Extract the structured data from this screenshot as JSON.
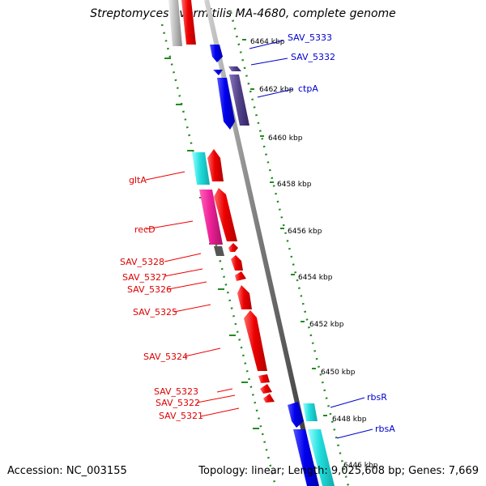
{
  "title": "Streptomyces avermitilis MA-4680, complete genome",
  "accession": "Accession: NC_003155",
  "meta": "Topology: linear; Length: 9,025,608 bp; Genes: 7,669",
  "colors": {
    "forward": "#ee0000",
    "reverse": "#0000ee",
    "cyan": "#22dddd",
    "magenta": "#ee2299",
    "purple": "#55448a",
    "gray": "#bbbbbb",
    "darkgray": "#555555",
    "tick": "#228b22"
  },
  "kbp_labels": [
    "6464 kbp",
    "6462 kbp",
    "6460 kbp",
    "6458 kbp",
    "6456 kbp",
    "6454 kbp",
    "6452 kbp",
    "6450 kbp",
    "6448 kbp",
    "6446 kbp"
  ],
  "genes_left": [
    "gltA",
    "recD",
    "SAV_5328",
    "SAV_5327",
    "SAV_5326",
    "SAV_5325",
    "SAV_5324",
    "SAV_5323",
    "SAV_5322",
    "SAV_5321"
  ],
  "genes_right": [
    "SAV_5333",
    "SAV_5332",
    "ctpA",
    "rbsR",
    "rbsA"
  ]
}
